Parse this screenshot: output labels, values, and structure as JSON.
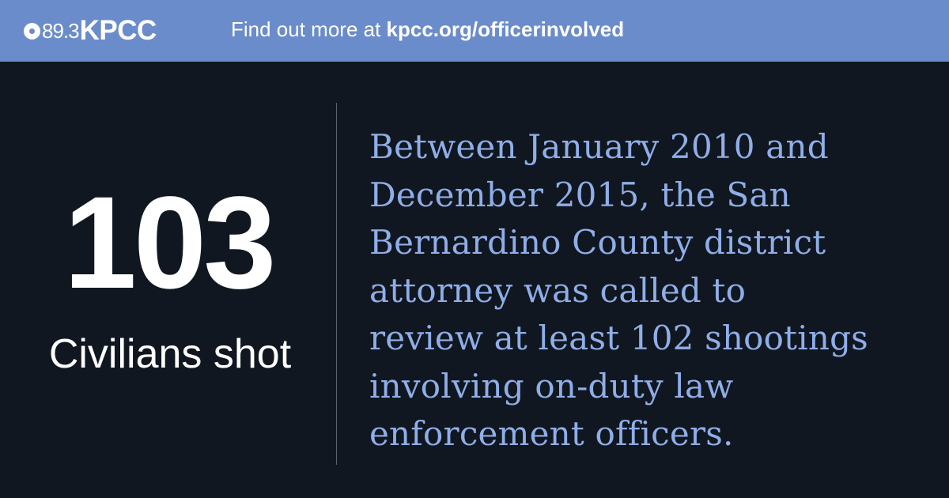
{
  "header": {
    "logo_frequency": "89.3",
    "logo_name": "KPCC",
    "cta_prefix": "Find out more at",
    "cta_url": "kpcc.org/officerinvolved"
  },
  "stat": {
    "number": "103",
    "label": "Civilians shot"
  },
  "description": {
    "lines": [
      "Between January 2010 and",
      "December 2015, the San",
      "Bernardino County district",
      "attorney was called to",
      "review at least 102 shootings",
      "involving on-duty law",
      "enforcement officers."
    ]
  },
  "colors": {
    "header_background": "#6b8ccb",
    "page_background": "#111720",
    "accent_text": "#8faee8"
  }
}
